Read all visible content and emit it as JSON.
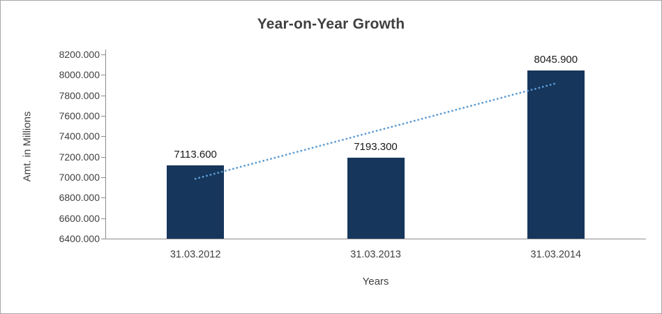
{
  "chart_data": {
    "type": "bar",
    "title": "Year-on-Year Growth",
    "categories": [
      "31.03.2012",
      "31.03.2013",
      "31.03.2014"
    ],
    "values": [
      7113.6,
      7193.3,
      8045.9
    ],
    "value_labels": [
      "7113.600",
      "7193.300",
      "8045.900"
    ],
    "xlabel": "Years",
    "ylabel": "Amt. in Millions",
    "ylim": [
      6400,
      8200
    ],
    "ytick_step": 200,
    "ytick_labels": [
      "6400.000",
      "6600.000",
      "6800.000",
      "7000.000",
      "7200.000",
      "7400.000",
      "7600.000",
      "7800.000",
      "8000.000",
      "8200.000"
    ],
    "grid": false,
    "legend": "none",
    "bar_color": "#16365C",
    "axis_color": "#8c8c8c",
    "frame_border_color": "#a6a6a6",
    "trendline": {
      "type": "linear",
      "style": "dotted",
      "color": "#5B9BD5",
      "start_value": 6984.8,
      "end_value": 7917.1
    }
  }
}
